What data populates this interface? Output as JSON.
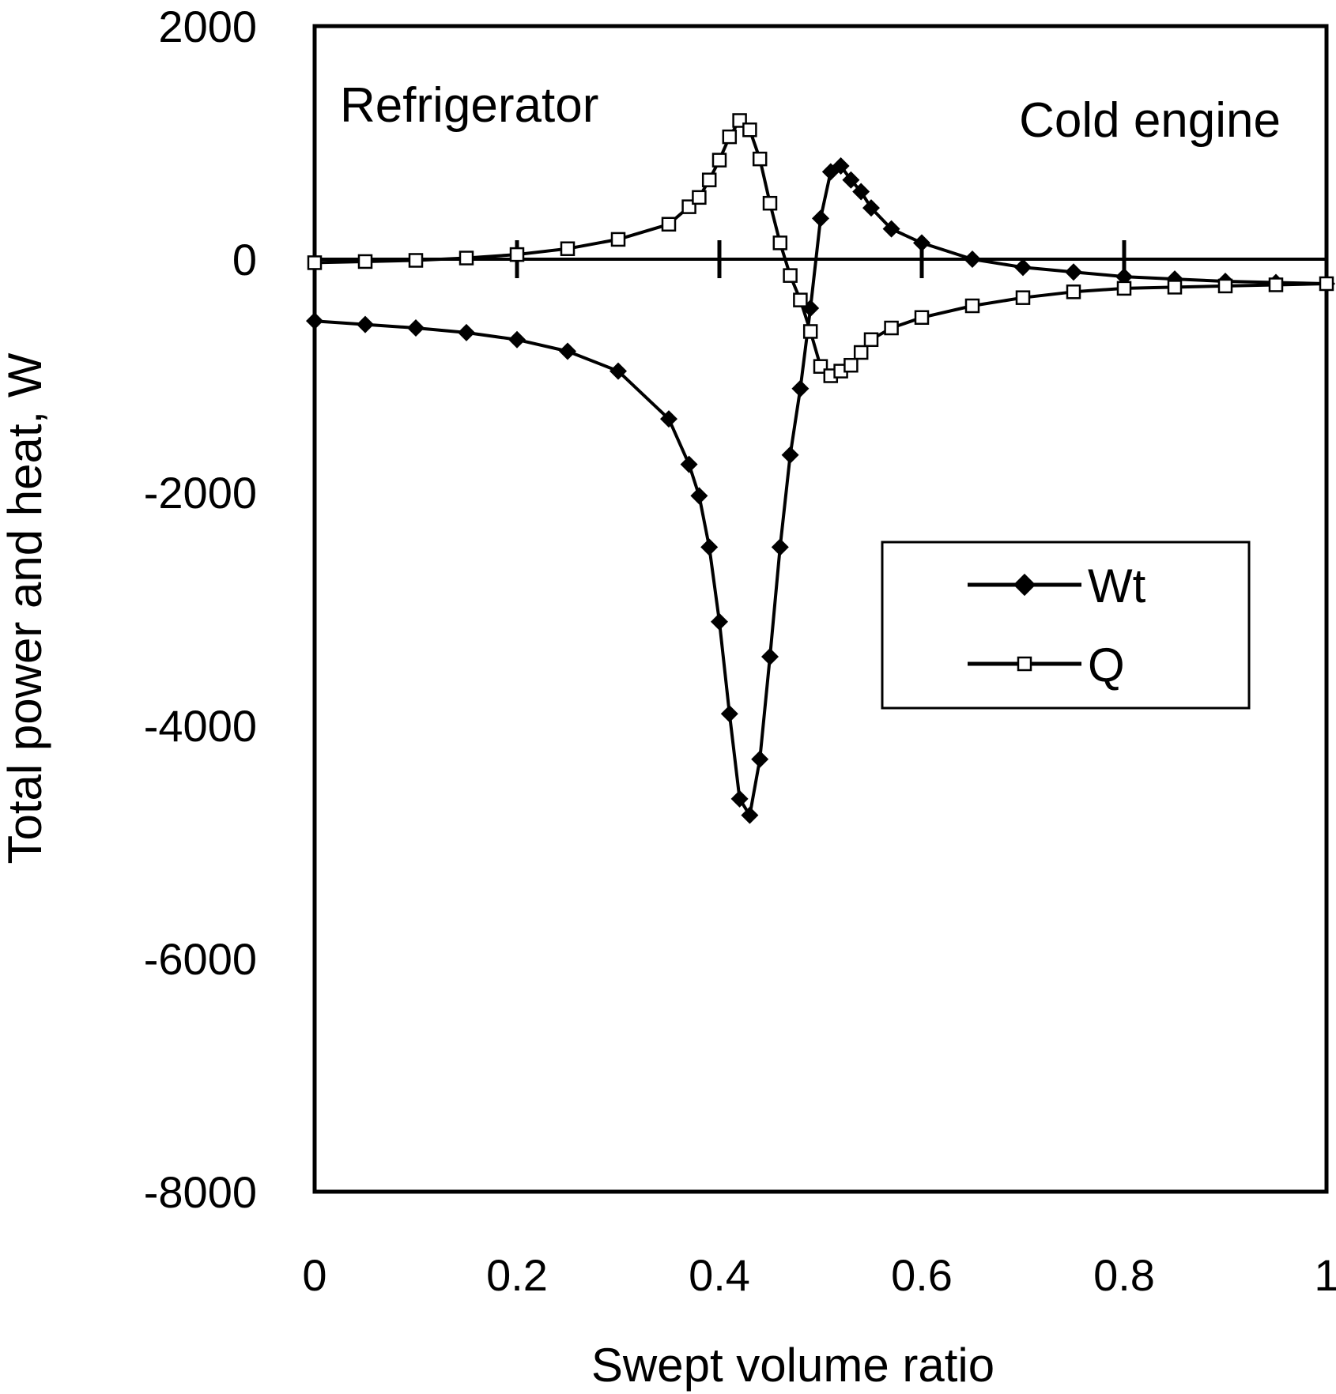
{
  "chart_data": {
    "type": "line",
    "xlabel": "Swept volume ratio",
    "ylabel": "Total power and heat, W",
    "xlim": [
      0,
      1
    ],
    "ylim": [
      -8000,
      2000
    ],
    "xticks": [
      0,
      0.2,
      0.4,
      0.6,
      0.8,
      1
    ],
    "xtick_labels": [
      "0",
      "0.2",
      "0.4",
      "0.6",
      "0.8",
      "1"
    ],
    "yticks": [
      2000,
      0,
      -2000,
      -4000,
      -6000,
      -8000
    ],
    "ytick_labels": [
      "2000",
      "0",
      "-2000",
      "-4000",
      "-6000",
      "-8000"
    ],
    "grid": false,
    "legend_position": "right-middle",
    "annotations": [
      {
        "text": "Refrigerator",
        "position": "top-left"
      },
      {
        "text": "Cold engine",
        "position": "top-right"
      }
    ],
    "series": [
      {
        "name": "Wt",
        "marker": "diamond-filled",
        "x": [
          0,
          0.05,
          0.1,
          0.15,
          0.2,
          0.25,
          0.3,
          0.35,
          0.37,
          0.38,
          0.39,
          0.4,
          0.41,
          0.42,
          0.43,
          0.44,
          0.45,
          0.46,
          0.47,
          0.48,
          0.49,
          0.5,
          0.51,
          0.52,
          0.53,
          0.54,
          0.55,
          0.57,
          0.6,
          0.65,
          0.7,
          0.75,
          0.8,
          0.85,
          0.9,
          0.95,
          1.0
        ],
        "y": [
          -530,
          -560,
          -590,
          -630,
          -690,
          -790,
          -960,
          -1370,
          -1760,
          -2030,
          -2470,
          -3110,
          -3900,
          -4630,
          -4770,
          -4290,
          -3410,
          -2470,
          -1680,
          -1110,
          -420,
          350,
          750,
          800,
          680,
          580,
          440,
          260,
          140,
          0,
          -70,
          -110,
          -150,
          -170,
          -190,
          -200,
          -210
        ]
      },
      {
        "name": "Q",
        "marker": "square-open",
        "x": [
          0,
          0.05,
          0.1,
          0.15,
          0.2,
          0.25,
          0.3,
          0.35,
          0.37,
          0.38,
          0.39,
          0.4,
          0.41,
          0.42,
          0.43,
          0.44,
          0.45,
          0.46,
          0.47,
          0.48,
          0.49,
          0.5,
          0.51,
          0.52,
          0.53,
          0.54,
          0.55,
          0.57,
          0.6,
          0.65,
          0.7,
          0.75,
          0.8,
          0.85,
          0.9,
          0.95,
          1.0
        ],
        "y": [
          -30,
          -20,
          -10,
          10,
          40,
          90,
          170,
          300,
          450,
          530,
          680,
          850,
          1050,
          1190,
          1110,
          860,
          480,
          140,
          -140,
          -350,
          -620,
          -920,
          -1000,
          -960,
          -910,
          -800,
          -690,
          -590,
          -500,
          -400,
          -330,
          -280,
          -250,
          -240,
          -230,
          -220,
          -210
        ]
      }
    ]
  }
}
